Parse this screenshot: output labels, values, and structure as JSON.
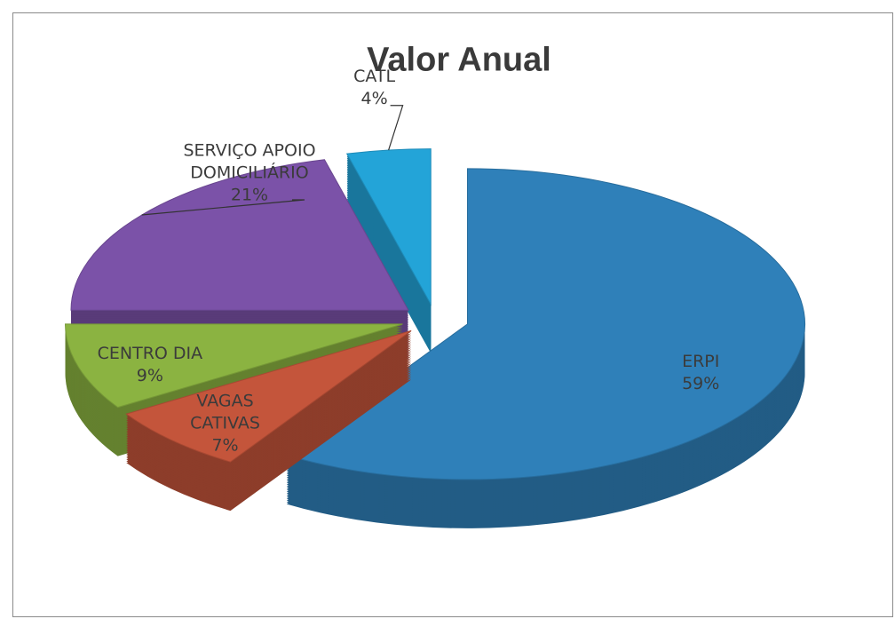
{
  "chart_data": {
    "type": "pie",
    "title": "Valor Anual",
    "categories": [
      "ERPI",
      "VAGAS CATIVAS",
      "CENTRO DIA",
      "SERVIÇO APOIO DOMICILIÁRIO",
      "CATL"
    ],
    "values": [
      59,
      7,
      9,
      21,
      4
    ],
    "value_labels": [
      "59%",
      "7%",
      "9%",
      "21%",
      "4%"
    ],
    "colors": [
      "#2f80b9",
      "#c4553b",
      "#8bb341",
      "#7b52a8",
      "#23a4d8"
    ]
  }
}
